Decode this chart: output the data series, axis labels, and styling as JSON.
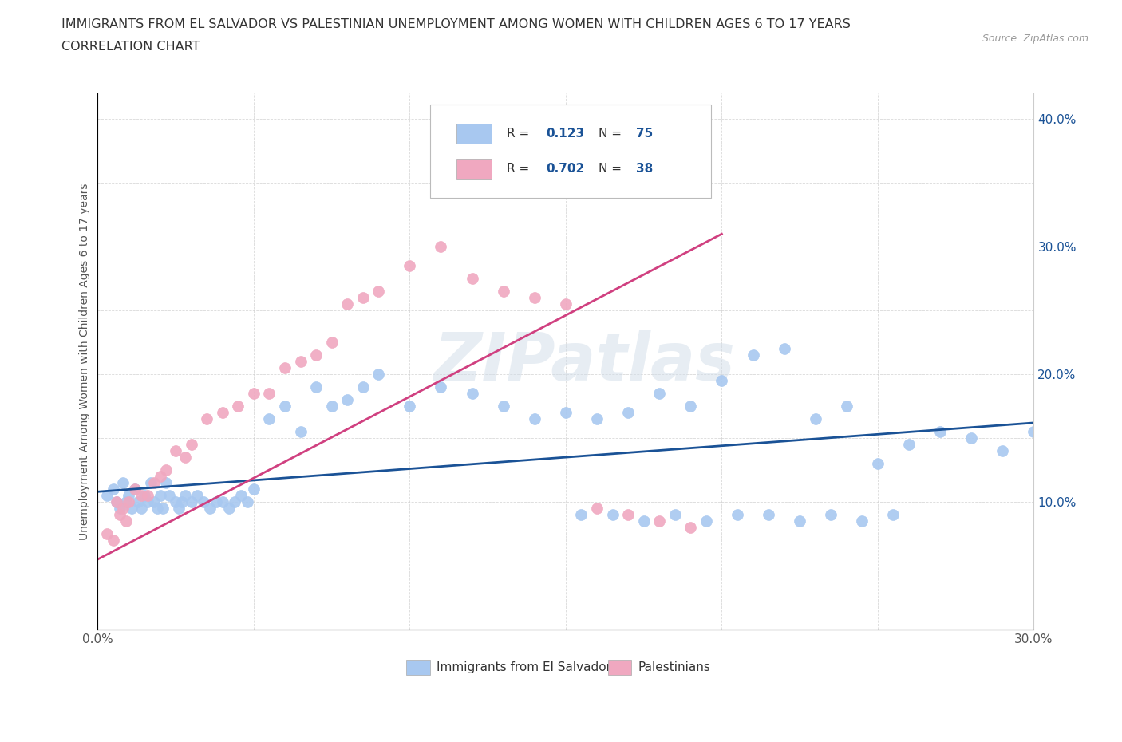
{
  "title_line1": "IMMIGRANTS FROM EL SALVADOR VS PALESTINIAN UNEMPLOYMENT AMONG WOMEN WITH CHILDREN AGES 6 TO 17 YEARS",
  "title_line2": "CORRELATION CHART",
  "source_text": "Source: ZipAtlas.com",
  "ylabel": "Unemployment Among Women with Children Ages 6 to 17 years",
  "xlim": [
    0.0,
    0.3
  ],
  "ylim": [
    0.0,
    0.42
  ],
  "x_tick_positions": [
    0.0,
    0.05,
    0.1,
    0.15,
    0.2,
    0.25,
    0.3
  ],
  "x_tick_labels": [
    "0.0%",
    "",
    "",
    "",
    "",
    "",
    "30.0%"
  ],
  "y_tick_positions": [
    0.0,
    0.05,
    0.1,
    0.15,
    0.2,
    0.25,
    0.3,
    0.35,
    0.4
  ],
  "y_tick_labels_left": [
    "",
    "",
    "",
    "",
    "",
    "",
    "",
    "",
    ""
  ],
  "y_tick_labels_right": [
    "",
    "",
    "10.0%",
    "",
    "20.0%",
    "",
    "30.0%",
    "",
    "40.0%"
  ],
  "watermark_text": "ZIPatlas",
  "blue_color": "#a8c8f0",
  "pink_color": "#f0a8c0",
  "blue_line_color": "#1a5296",
  "pink_line_color": "#d04080",
  "legend_color": "#1a5296",
  "legend_R1": "0.123",
  "legend_N1": "75",
  "legend_R2": "0.702",
  "legend_N2": "38",
  "blue_x": [
    0.003,
    0.005,
    0.006,
    0.007,
    0.008,
    0.009,
    0.01,
    0.011,
    0.012,
    0.013,
    0.014,
    0.015,
    0.016,
    0.017,
    0.018,
    0.019,
    0.02,
    0.021,
    0.022,
    0.023,
    0.025,
    0.026,
    0.027,
    0.028,
    0.03,
    0.032,
    0.034,
    0.036,
    0.038,
    0.04,
    0.042,
    0.044,
    0.046,
    0.048,
    0.05,
    0.055,
    0.06,
    0.065,
    0.07,
    0.075,
    0.08,
    0.085,
    0.09,
    0.1,
    0.11,
    0.12,
    0.13,
    0.14,
    0.15,
    0.16,
    0.17,
    0.18,
    0.19,
    0.2,
    0.21,
    0.22,
    0.23,
    0.24,
    0.25,
    0.26,
    0.27,
    0.28,
    0.29,
    0.3,
    0.155,
    0.165,
    0.175,
    0.185,
    0.195,
    0.205,
    0.215,
    0.225,
    0.235,
    0.245,
    0.255
  ],
  "blue_y": [
    0.105,
    0.11,
    0.1,
    0.095,
    0.115,
    0.1,
    0.105,
    0.095,
    0.11,
    0.1,
    0.095,
    0.105,
    0.1,
    0.115,
    0.1,
    0.095,
    0.105,
    0.095,
    0.115,
    0.105,
    0.1,
    0.095,
    0.1,
    0.105,
    0.1,
    0.105,
    0.1,
    0.095,
    0.1,
    0.1,
    0.095,
    0.1,
    0.105,
    0.1,
    0.11,
    0.165,
    0.175,
    0.155,
    0.19,
    0.175,
    0.18,
    0.19,
    0.2,
    0.175,
    0.19,
    0.185,
    0.175,
    0.165,
    0.17,
    0.165,
    0.17,
    0.185,
    0.175,
    0.195,
    0.215,
    0.22,
    0.165,
    0.175,
    0.13,
    0.145,
    0.155,
    0.15,
    0.14,
    0.155,
    0.09,
    0.09,
    0.085,
    0.09,
    0.085,
    0.09,
    0.09,
    0.085,
    0.09,
    0.085,
    0.09
  ],
  "pink_x": [
    0.003,
    0.005,
    0.006,
    0.007,
    0.008,
    0.009,
    0.01,
    0.012,
    0.014,
    0.016,
    0.018,
    0.02,
    0.022,
    0.025,
    0.028,
    0.03,
    0.035,
    0.04,
    0.045,
    0.05,
    0.055,
    0.06,
    0.065,
    0.07,
    0.075,
    0.08,
    0.085,
    0.09,
    0.1,
    0.11,
    0.12,
    0.13,
    0.14,
    0.15,
    0.16,
    0.17,
    0.18,
    0.19
  ],
  "pink_y": [
    0.075,
    0.07,
    0.1,
    0.09,
    0.095,
    0.085,
    0.1,
    0.11,
    0.105,
    0.105,
    0.115,
    0.12,
    0.125,
    0.14,
    0.135,
    0.145,
    0.165,
    0.17,
    0.175,
    0.185,
    0.185,
    0.205,
    0.21,
    0.215,
    0.225,
    0.255,
    0.26,
    0.265,
    0.285,
    0.3,
    0.275,
    0.265,
    0.26,
    0.255,
    0.095,
    0.09,
    0.085,
    0.08
  ]
}
